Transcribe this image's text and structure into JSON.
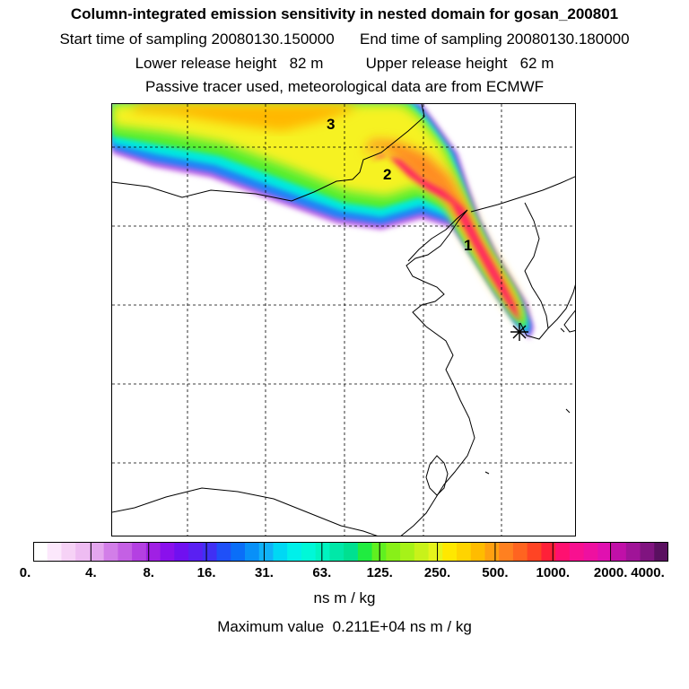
{
  "header": {
    "title": "Column-integrated emission sensitivity in nested domain for gosan_200801",
    "start_label": "Start time of sampling 20080130.150000",
    "end_label": "End time of sampling 20080130.180000",
    "lower_label": "Lower release height   82 m",
    "upper_label": "Upper release height   62 m",
    "tracer_line": "Passive tracer used, meteorological data are from ECMWF"
  },
  "map": {
    "markers": [
      "1",
      "2",
      "3"
    ],
    "receptor": "gosan"
  },
  "colorbar": {
    "ticks": [
      "0.",
      "4.",
      "8.",
      "16.",
      "31.",
      "63.",
      "125.",
      "250.",
      "500.",
      "1000.",
      "2000.",
      "4000."
    ],
    "colors": [
      "#ffffff",
      "#fce8fc",
      "#f6d2f6",
      "#eebcf2",
      "#e4a6ee",
      "#d27ee8",
      "#c460e4",
      "#b440e2",
      "#a020e4",
      "#8a10ec",
      "#7010f0",
      "#5a20f2",
      "#4030f4",
      "#1f50f8",
      "#0a6ef8",
      "#0890f8",
      "#10b2f8",
      "#00d8f4",
      "#00f0ea",
      "#00f8d8",
      "#00f4c0",
      "#00e8a8",
      "#00e090",
      "#20ec40",
      "#60f020",
      "#88f018",
      "#a6f218",
      "#c8f21a",
      "#e6f41c",
      "#ffe800",
      "#ffd400",
      "#ffbc00",
      "#ffa010",
      "#ff8020",
      "#ff6420",
      "#ff4424",
      "#ff2038",
      "#ff1070",
      "#f81090",
      "#ee10a0",
      "#e010b0",
      "#c010a8",
      "#a01498",
      "#801480",
      "#5a1060"
    ],
    "unit": "ns m / kg",
    "max_label": "Maximum value  0.211E+04 ns m / kg"
  }
}
